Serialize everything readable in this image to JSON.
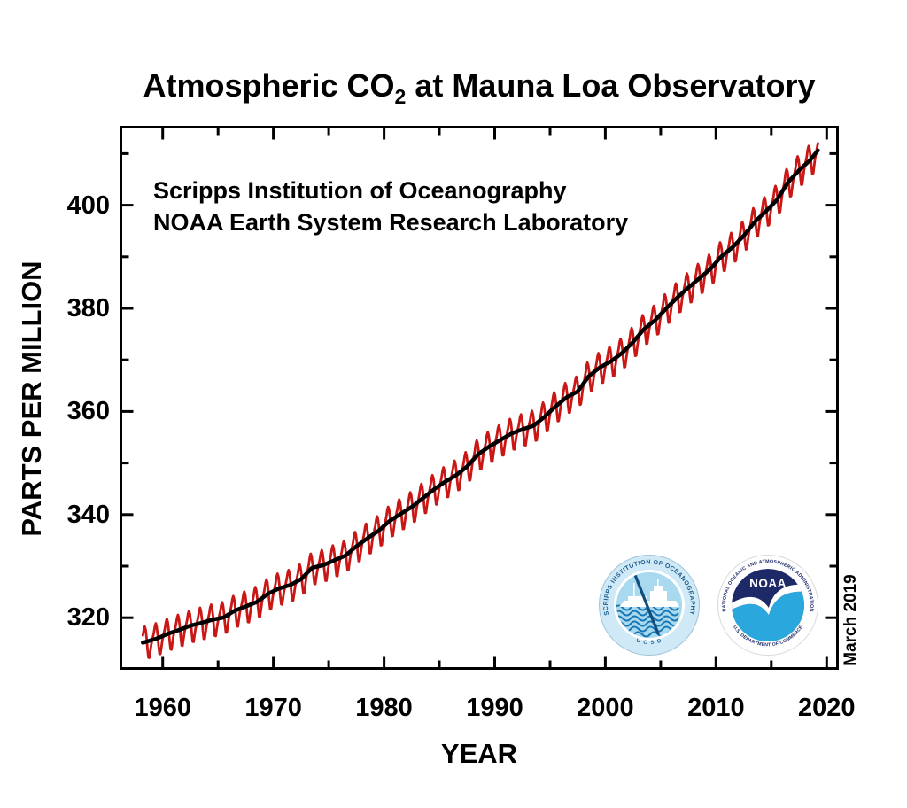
{
  "page": {
    "background": "#ffffff"
  },
  "title": {
    "prefix": "Atmospheric CO",
    "subscript": "2",
    "suffix": " at Mauna Loa Observatory"
  },
  "annotation": {
    "line1": "Scripps Institution of Oceanography",
    "line2": "NOAA Earth System Research Laboratory"
  },
  "axes": {
    "x_label": "YEAR",
    "y_label": "PARTS PER MILLION"
  },
  "date_stamp": "March 2019",
  "logos": {
    "scripps": {
      "arc_text": "SCRIPPS INSTITUTION OF OCEANOGRAPHY",
      "bottom_text": "U C S D",
      "colors": {
        "ring": "#cfe9f6",
        "sky": "#a9d9ef",
        "wave": "#1878b6",
        "text": "#1b5a8c",
        "trident": "#124e7c",
        "ship": "#ffffff"
      }
    },
    "noaa": {
      "name": "NOAA",
      "arc_text_top": "NATIONAL OCEANIC AND ATMOSPHERIC ADMINISTRATION",
      "arc_text_bottom": "U.S. DEPARTMENT OF COMMERCE",
      "colors": {
        "navy": "#1e2968",
        "cyan": "#2aa7dc",
        "text": "#232d6e",
        "gull": "#ffffff"
      }
    }
  },
  "chart_data": {
    "type": "line",
    "title": "Atmospheric CO2 at Mauna Loa Observatory",
    "xlabel": "YEAR",
    "ylabel": "PARTS PER MILLION",
    "grid": false,
    "xlim": [
      1956.1,
      2021.1
    ],
    "ylim": [
      309.9,
      415.4
    ],
    "x_major_ticks": [
      1960,
      1970,
      1980,
      1990,
      2000,
      2010,
      2020
    ],
    "x_minor_ticks": [
      1965,
      1975,
      1985,
      1995,
      2005,
      2015
    ],
    "y_major_ticks": [
      320,
      340,
      360,
      380,
      400
    ],
    "y_minor_ticks": [
      330,
      350,
      370,
      390,
      410
    ],
    "series": [
      {
        "name": "monthly mean CO2 (with seasonal cycle)",
        "color": "#c91715",
        "width": 2.8,
        "construction": "trend_ppm interpolated + seasonal_offsets_by_month"
      },
      {
        "name": "seasonally adjusted trend",
        "color": "#000000",
        "width": 4.5,
        "construction": "trend_ppm interpolated"
      }
    ],
    "data_start_year": 1958.208,
    "data_end_year": 2019.208,
    "trend_years": [
      1958,
      1959,
      1960,
      1961,
      1962,
      1963,
      1964,
      1965,
      1966,
      1967,
      1968,
      1969,
      1970,
      1971,
      1972,
      1973,
      1974,
      1975,
      1976,
      1977,
      1978,
      1979,
      1980,
      1981,
      1982,
      1983,
      1984,
      1985,
      1986,
      1987,
      1988,
      1989,
      1990,
      1991,
      1992,
      1993,
      1994,
      1995,
      1996,
      1997,
      1998,
      1999,
      2000,
      2001,
      2002,
      2003,
      2004,
      2005,
      2006,
      2007,
      2008,
      2009,
      2010,
      2011,
      2012,
      2013,
      2014,
      2015,
      2016,
      2017,
      2018,
      2019
    ],
    "trend_ppm": [
      315.34,
      315.98,
      316.91,
      317.64,
      318.45,
      318.99,
      319.62,
      320.04,
      321.37,
      322.18,
      323.05,
      324.62,
      325.68,
      326.32,
      327.46,
      329.68,
      330.19,
      331.12,
      332.03,
      333.84,
      335.41,
      336.84,
      338.76,
      340.12,
      341.48,
      343.15,
      344.87,
      346.35,
      347.61,
      349.31,
      351.69,
      353.2,
      354.45,
      355.7,
      356.54,
      357.21,
      358.96,
      360.97,
      362.74,
      363.88,
      366.84,
      368.54,
      369.71,
      371.32,
      373.45,
      375.98,
      377.7,
      379.98,
      382.09,
      384.02,
      385.83,
      387.64,
      390.1,
      391.85,
      394.06,
      396.74,
      398.81,
      401.01,
      404.41,
      406.76,
      408.72,
      411.4
    ],
    "seasonal_offsets_by_month": [
      -0.1,
      0.6,
      1.4,
      2.5,
      3.0,
      2.3,
      0.7,
      -1.5,
      -3.2,
      -3.3,
      -2.1,
      -0.9
    ]
  }
}
